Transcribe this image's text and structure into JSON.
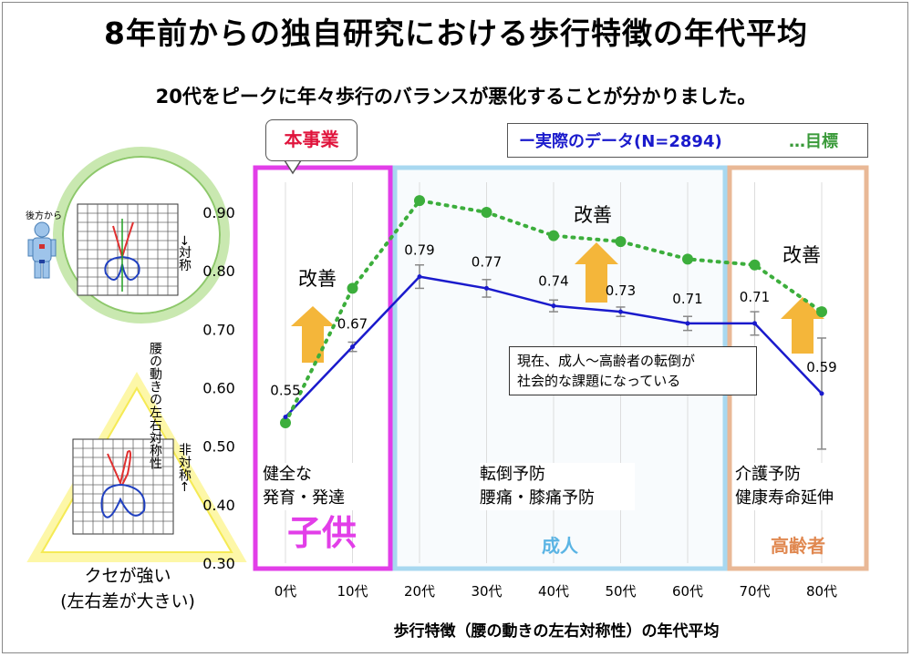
{
  "title": "8年前からの独自研究における歩行特徴の年代平均",
  "subtitle": "20代をピークに年々歩行のバランスが悪化することが分かりました。",
  "callout_label": "本事業",
  "legend": {
    "actual": "ー実際のデータ(N=2894)",
    "target": "…目標",
    "actual_color": "#1a1acc",
    "target_color": "#3cae3c"
  },
  "zones": {
    "child": {
      "label": "子供",
      "desc_line1": "健全な",
      "desc_line2": "発育・発達",
      "color": "#e23ee8"
    },
    "adult": {
      "label": "成人",
      "desc_line1": "転倒予防",
      "desc_line2": "腰痛・膝痛予防",
      "color": "#a8d8f0"
    },
    "elder": {
      "label": "高齢者",
      "desc_line1": "介護予防",
      "desc_line2": "健康寿命延伸",
      "color": "#e9b896"
    }
  },
  "improvement_label": "改善",
  "note": {
    "line1": "現在、成人～高齢者の転倒が",
    "line2": "社会的な課題になっている"
  },
  "y_axis": {
    "label": "腰の動きの左右対称性",
    "top_marker": "→対称",
    "bottom_marker": "非対称←"
  },
  "left_panel": {
    "viewpoint_label": "後方から",
    "caption_line1": "クセが強い",
    "caption_line2": "(左右差が大きい)"
  },
  "x_axis_title": "歩行特徴（腰の動きの左右対称性）の年代平均",
  "chart_data": {
    "type": "line",
    "categories": [
      "0代",
      "10代",
      "20代",
      "30代",
      "40代",
      "50代",
      "60代",
      "70代",
      "80代"
    ],
    "series": [
      {
        "name": "実際のデータ(N=2894)",
        "values": [
          0.55,
          0.67,
          0.79,
          0.77,
          0.74,
          0.73,
          0.71,
          0.71,
          0.59
        ],
        "error": [
          0.0,
          0.008,
          0.02,
          0.015,
          0.01,
          0.008,
          0.012,
          0.02,
          0.095
        ],
        "labels": [
          "0.55",
          "0.67",
          "0.79",
          "0.77",
          "0.74",
          "0.73",
          "0.71",
          "0.71",
          "0.59"
        ]
      },
      {
        "name": "目標",
        "values": [
          0.54,
          0.77,
          0.92,
          0.9,
          0.86,
          0.85,
          0.82,
          0.81,
          0.73
        ]
      }
    ],
    "ylim": [
      0.3,
      0.95
    ],
    "yticks": [
      "0.90",
      "0.80",
      "0.70",
      "0.60",
      "0.50",
      "0.40",
      "0.30"
    ],
    "ytick_values": [
      0.9,
      0.8,
      0.7,
      0.6,
      0.5,
      0.4,
      0.3
    ]
  }
}
